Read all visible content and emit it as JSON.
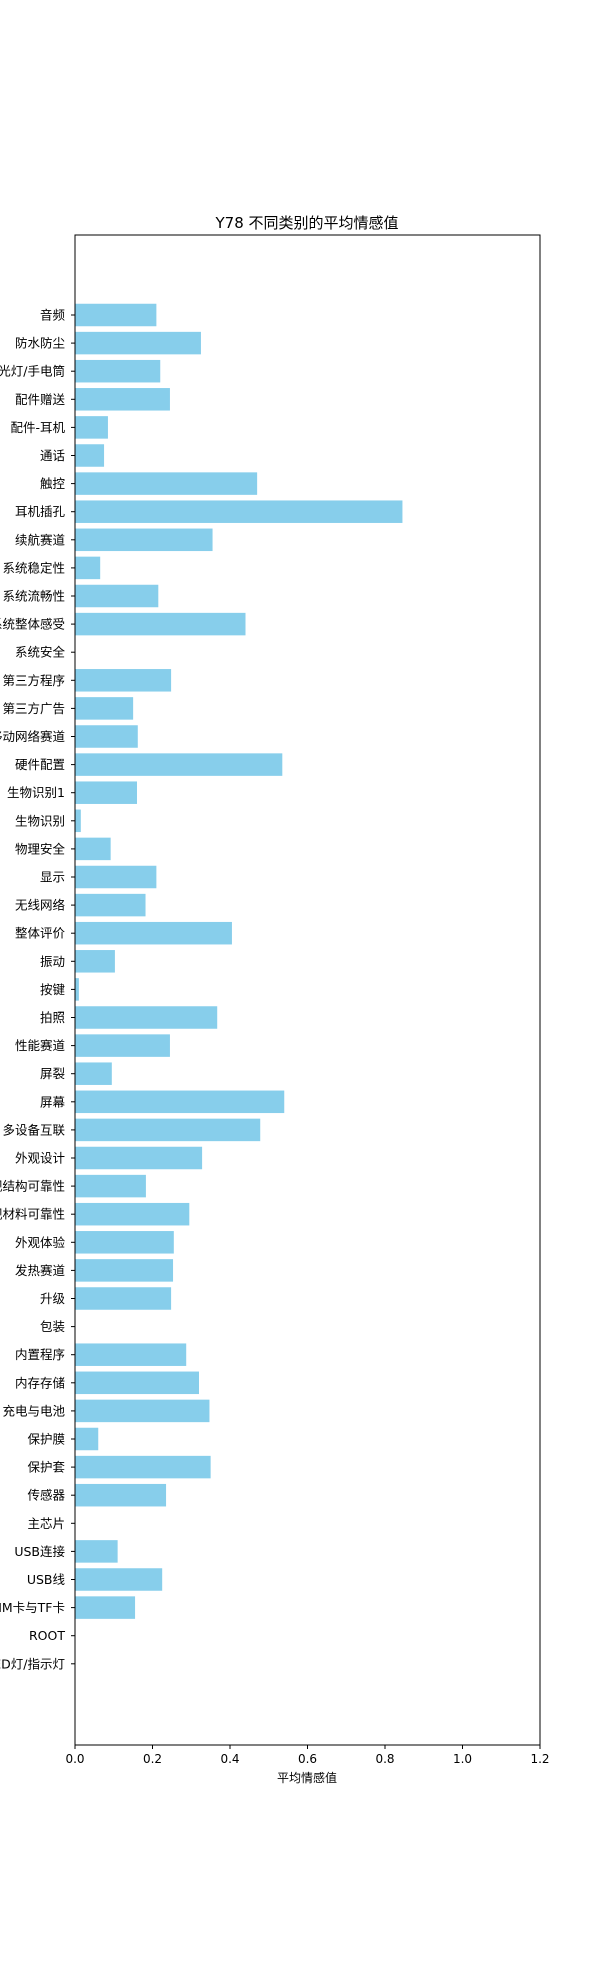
{
  "chart_data": {
    "type": "bar",
    "orientation": "horizontal",
    "title": "Y78 不同类别的平均情感值",
    "xlabel": "平均情感值",
    "ylabel": "",
    "xlim": [
      0,
      1.2
    ],
    "xticks": [
      "0.0",
      "0.2",
      "0.4",
      "0.6",
      "0.8",
      "1.0",
      "1.2"
    ],
    "grid": false,
    "bar_color": "#87CEEB",
    "categories": [
      "音频",
      "防水防尘",
      "闪光灯/手电筒",
      "配件赠送",
      "配件-耳机",
      "通话",
      "触控",
      "耳机插孔",
      "续航赛道",
      "系统稳定性",
      "系统流畅性",
      "系统整体感受",
      "系统安全",
      "第三方程序",
      "第三方广告",
      "移动网络赛道",
      "硬件配置",
      "生物识别1",
      "生物识别",
      "物理安全",
      "显示",
      "无线网络",
      "整体评价",
      "振动",
      "按键",
      "拍照",
      "性能赛道",
      "屏裂",
      "屏幕",
      "多设备互联",
      "外观设计",
      "外观结构可靠性",
      "外观材料可靠性",
      "外观体验",
      "发热赛道",
      "升级",
      "包装",
      "内置程序",
      "内存存储",
      "充电与电池",
      "保护膜",
      "保护套",
      "传感器",
      "主芯片",
      "USB连接",
      "USB线",
      "SIM卡与TF卡",
      "ROOT",
      "LED灯/指示灯"
    ],
    "values": [
      0.21,
      0.325,
      0.22,
      0.245,
      0.085,
      0.075,
      0.47,
      0.845,
      0.355,
      0.065,
      0.215,
      0.44,
      0.0,
      0.248,
      0.15,
      0.162,
      0.535,
      0.16,
      0.015,
      0.092,
      0.21,
      0.182,
      0.405,
      0.103,
      0.01,
      0.367,
      0.245,
      0.095,
      0.54,
      0.478,
      0.328,
      0.183,
      0.295,
      0.255,
      0.253,
      0.248,
      0.0,
      0.287,
      0.32,
      0.347,
      0.06,
      0.35,
      0.235,
      0.0,
      0.11,
      0.225,
      0.155,
      0.0,
      0.0
    ]
  }
}
